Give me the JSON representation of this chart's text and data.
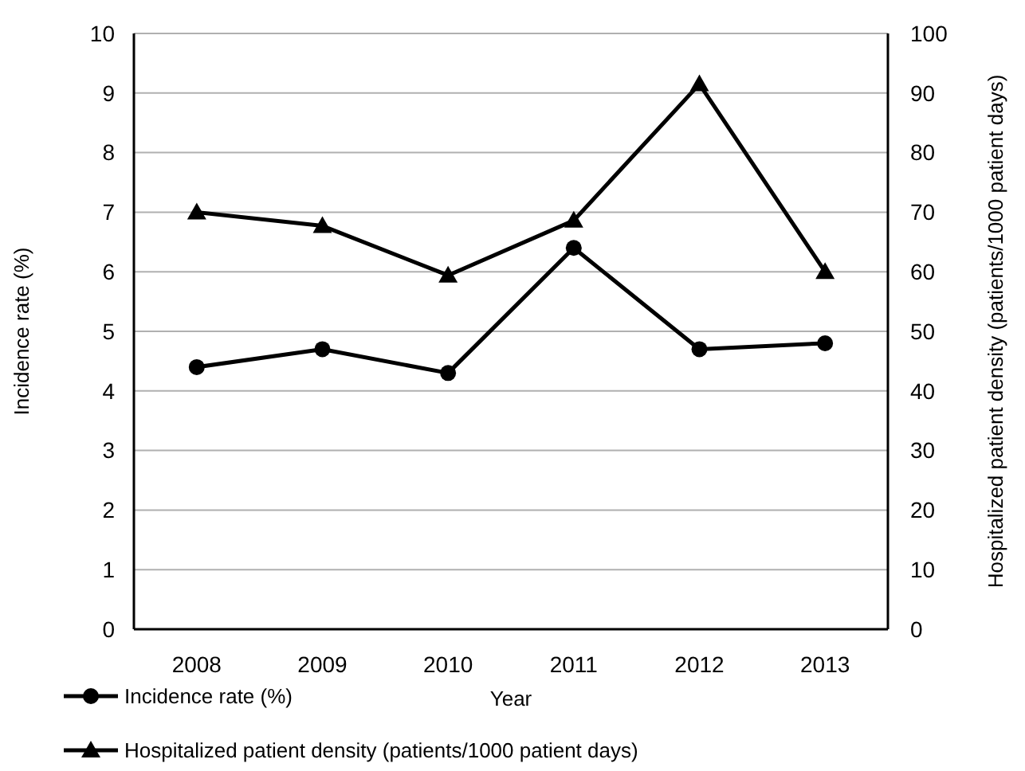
{
  "chart_data": {
    "type": "line",
    "xlabel": "Year",
    "ylabel": "Incidence rate (%)",
    "y2label": "Hospitalized patient density (patients/1000 patient days)",
    "categories": [
      "2008",
      "2009",
      "2010",
      "2011",
      "2012",
      "2013"
    ],
    "series": [
      {
        "name": "Incidence rate (%)",
        "color": "#000000",
        "marker": "circle",
        "values": [
          4.4,
          4.7,
          4.3,
          6.4,
          4.7,
          4.8
        ]
      },
      {
        "name": "Hospitalized patient density (patients/1000 patient days)",
        "color": "#000000",
        "marker": "triangle",
        "axis": "y2",
        "values": [
          70,
          67.7,
          59.4,
          68.6,
          91.5,
          60
        ]
      }
    ],
    "ylim": [
      0,
      10
    ],
    "yticks": [
      0,
      1,
      2,
      3,
      4,
      5,
      6,
      7,
      8,
      9,
      10
    ],
    "y2lim": [
      0,
      100
    ],
    "y2ticks": [
      0,
      10,
      20,
      30,
      40,
      50,
      60,
      70,
      80,
      90,
      100
    ],
    "grid": "y",
    "legend": "bottom",
    "line_style": "solid"
  }
}
